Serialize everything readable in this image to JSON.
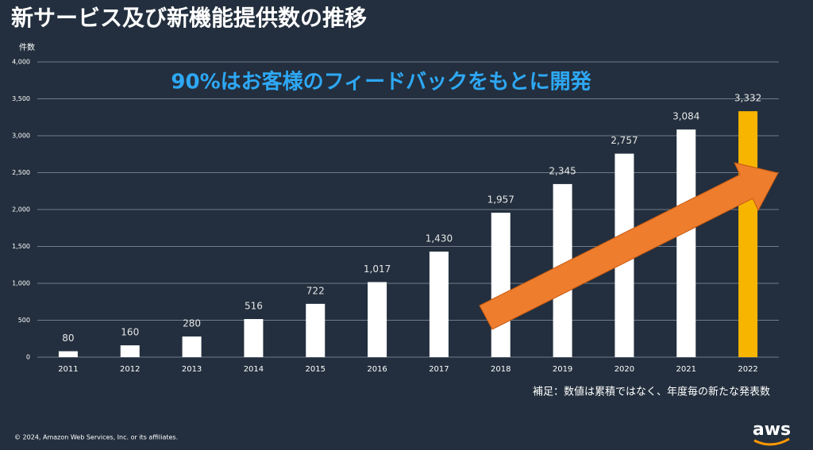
{
  "chart_data": {
    "type": "bar",
    "title": "新サービス及び新機能提供数の推移",
    "y_label": "件数",
    "annotation": "90%はお客様のフィードバックをもとに開発",
    "footnote": "補足：数値は累積ではなく、年度毎の新たな発表数",
    "copyright": "© 2024, Amazon Web Services, Inc. or its affiliates.",
    "logo": "aws",
    "categories": [
      "2011",
      "2012",
      "2013",
      "2014",
      "2015",
      "2016",
      "2017",
      "2018",
      "2019",
      "2020",
      "2021",
      "2022"
    ],
    "values": [
      80,
      160,
      280,
      516,
      722,
      1017,
      1430,
      1957,
      2345,
      2757,
      3084,
      3332
    ],
    "value_labels": [
      "80",
      "160",
      "280",
      "516",
      "722",
      "1,017",
      "1,430",
      "1,957",
      "2,345",
      "2,757",
      "3,084",
      "3,332"
    ],
    "bar_colors": [
      "#ffffff",
      "#ffffff",
      "#ffffff",
      "#ffffff",
      "#ffffff",
      "#ffffff",
      "#ffffff",
      "#ffffff",
      "#ffffff",
      "#ffffff",
      "#ffffff",
      "#f8b500"
    ],
    "ylim": [
      0,
      4000
    ],
    "yticks": [
      0,
      500,
      {
        "value": 1000,
        "label": "1,000"
      },
      {
        "value": 1500,
        "label": "1,500"
      },
      {
        "value": 2000,
        "label": "2,000"
      },
      {
        "value": 2500,
        "label": "2,500"
      },
      {
        "value": 3000,
        "label": "3,000"
      },
      {
        "value": 3500,
        "label": "3,500"
      },
      {
        "value": 4000,
        "label": "4,000"
      }
    ],
    "grid": true
  }
}
